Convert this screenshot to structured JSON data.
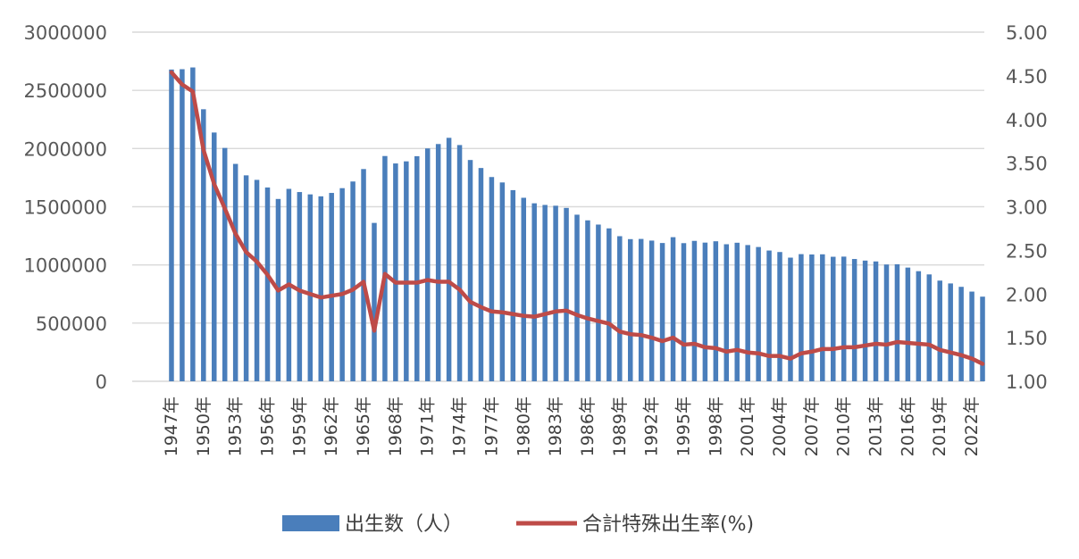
{
  "chart_data": {
    "type": "bar",
    "years": [
      "1947年",
      "1948年",
      "1949年",
      "1950年",
      "1951年",
      "1952年",
      "1953年",
      "1954年",
      "1955年",
      "1956年",
      "1957年",
      "1958年",
      "1959年",
      "1960年",
      "1961年",
      "1962年",
      "1963年",
      "1964年",
      "1965年",
      "1966年",
      "1967年",
      "1968年",
      "1969年",
      "1970年",
      "1971年",
      "1972年",
      "1973年",
      "1974年",
      "1975年",
      "1976年",
      "1977年",
      "1978年",
      "1979年",
      "1980年",
      "1981年",
      "1982年",
      "1983年",
      "1984年",
      "1985年",
      "1986年",
      "1987年",
      "1988年",
      "1989年",
      "1990年",
      "1991年",
      "1992年",
      "1993年",
      "1994年",
      "1995年",
      "1996年",
      "1997年",
      "1998年",
      "1999年",
      "2000年",
      "2001年",
      "2002年",
      "2003年",
      "2004年",
      "2005年",
      "2006年",
      "2007年",
      "2008年",
      "2009年",
      "2010年",
      "2011年",
      "2012年",
      "2013年",
      "2014年",
      "2015年",
      "2016年",
      "2017年",
      "2018年",
      "2019年",
      "2020年",
      "2021年",
      "2022年",
      "2023年"
    ],
    "x_tick_labels": [
      "1947年",
      "1950年",
      "1953年",
      "1956年",
      "1959年",
      "1962年",
      "1965年",
      "1968年",
      "1971年",
      "1974年",
      "1977年",
      "1980年",
      "1983年",
      "1986年",
      "1989年",
      "1992年",
      "1995年",
      "1998年",
      "2001年",
      "2004年",
      "2007年",
      "2010年",
      "2013年",
      "2016年",
      "2019年",
      "2022年"
    ],
    "series": [
      {
        "name": "出生数（人）",
        "kind": "bar",
        "axis": "left",
        "color": "#4a7ebb",
        "values": [
          2678792,
          2681624,
          2696638,
          2337507,
          2137689,
          2005162,
          1868040,
          1769580,
          1730692,
          1665278,
          1566713,
          1653469,
          1626088,
          1606041,
          1589372,
          1618616,
          1659521,
          1716761,
          1823697,
          1360974,
          1935647,
          1871839,
          1889815,
          1934239,
          2000973,
          2038682,
          2091983,
          2029989,
          1901440,
          1832617,
          1755100,
          1708643,
          1642580,
          1576889,
          1529455,
          1515392,
          1508687,
          1489780,
          1431577,
          1382946,
          1346658,
          1314006,
          1246802,
          1221585,
          1223245,
          1208989,
          1188282,
          1238328,
          1187064,
          1206555,
          1191665,
          1203147,
          1177669,
          1190547,
          1170662,
          1153855,
          1123610,
          1110721,
          1062530,
          1092674,
          1089818,
          1091156,
          1070036,
          1071304,
          1050806,
          1037231,
          1029817,
          1003539,
          1005721,
          977242,
          946146,
          918400,
          865239,
          840835,
          811622,
          770759,
          727288
        ]
      },
      {
        "name": "合計特殊出生率(%)",
        "kind": "line",
        "axis": "right",
        "color": "#be4b48",
        "values": [
          4.54,
          4.4,
          4.32,
          3.65,
          3.26,
          2.98,
          2.69,
          2.48,
          2.37,
          2.22,
          2.04,
          2.11,
          2.04,
          2.0,
          1.96,
          1.98,
          2.0,
          2.05,
          2.14,
          1.58,
          2.23,
          2.13,
          2.13,
          2.13,
          2.16,
          2.14,
          2.14,
          2.05,
          1.91,
          1.85,
          1.8,
          1.79,
          1.77,
          1.75,
          1.74,
          1.77,
          1.8,
          1.81,
          1.76,
          1.72,
          1.69,
          1.66,
          1.57,
          1.54,
          1.53,
          1.5,
          1.46,
          1.5,
          1.42,
          1.43,
          1.39,
          1.38,
          1.34,
          1.36,
          1.33,
          1.32,
          1.29,
          1.29,
          1.26,
          1.32,
          1.34,
          1.37,
          1.37,
          1.39,
          1.39,
          1.41,
          1.43,
          1.42,
          1.45,
          1.44,
          1.43,
          1.42,
          1.36,
          1.33,
          1.3,
          1.26,
          1.2
        ]
      }
    ],
    "y_left": {
      "min": 0,
      "max": 3000000,
      "ticks": [
        "0",
        "500000",
        "1000000",
        "1500000",
        "2000000",
        "2500000",
        "3000000"
      ]
    },
    "y_right": {
      "min": 1.0,
      "max": 5.0,
      "ticks": [
        "1.00",
        "1.50",
        "2.00",
        "2.50",
        "3.00",
        "3.50",
        "4.00",
        "4.50",
        "5.00"
      ]
    },
    "grid": true,
    "legend_position": "bottom",
    "title": "",
    "xlabel": "",
    "ylabel": ""
  }
}
